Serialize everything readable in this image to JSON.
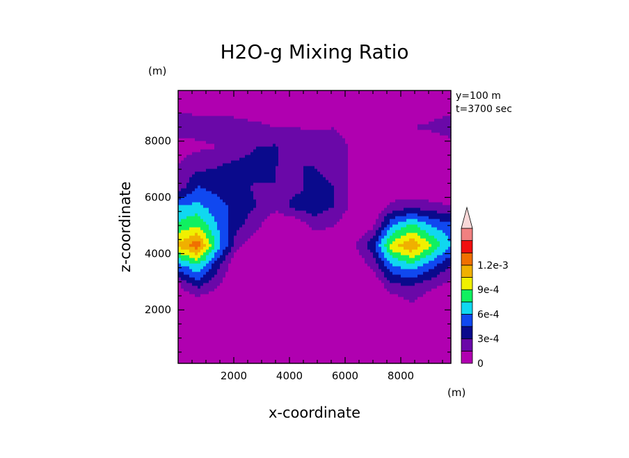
{
  "chart_data": {
    "type": "heatmap",
    "title": "H2O-g Mixing Ratio",
    "xlabel": "x-coordinate",
    "ylabel": "z-coordinate",
    "x_unit": "(m)",
    "y_unit": "(m)",
    "xlim": [
      0,
      9800
    ],
    "ylim": [
      100,
      9800
    ],
    "x_ticks": [
      2000,
      4000,
      6000,
      8000
    ],
    "x_tick_labels": [
      "2000",
      "4000",
      "6000",
      "8000"
    ],
    "y_ticks": [
      2000,
      4000,
      6000,
      8000
    ],
    "y_tick_labels": [
      "2000",
      "4000",
      "6000",
      "8000"
    ],
    "annotations": [
      "y=100 m",
      "t=3700 sec"
    ],
    "colorbar": {
      "levels": [
        0,
        0.00015,
        0.0003,
        0.00045,
        0.0006,
        0.00075,
        0.0009,
        0.00105,
        0.0012,
        0.00135
      ],
      "colors": [
        "#ffffff",
        "#b000b0",
        "#6a08a8",
        "#0a0a8c",
        "#1048f0",
        "#10d8f0",
        "#10f060",
        "#f0f000",
        "#f0b000",
        "#f07000",
        "#f01010",
        "#f08080",
        "#f8d8d8"
      ],
      "tick_labels": [
        "0",
        "3e-4",
        "6e-4",
        "9e-4",
        "1.2e-3"
      ],
      "extend_max": true
    },
    "grid": {
      "x": [
        0,
        700,
        1400,
        2100,
        2800,
        3500,
        4200,
        4900,
        5600,
        6300,
        7000,
        7700,
        8400,
        9100,
        9800
      ],
      "z": [
        100,
        800,
        1500,
        2200,
        2900,
        3600,
        4300,
        5000,
        5700,
        6400,
        7100,
        7800,
        8500,
        9200,
        9800
      ],
      "values": [
        [
          0,
          0,
          0,
          0,
          0,
          0,
          0,
          0,
          0,
          0,
          0,
          0,
          0,
          0,
          0
        ],
        [
          0,
          0,
          0,
          0,
          0,
          0,
          0,
          0,
          0,
          0,
          0,
          0,
          0,
          0,
          0
        ],
        [
          0,
          0,
          0,
          0,
          0,
          0,
          0,
          0,
          0,
          0,
          0,
          0,
          0,
          0,
          0
        ],
        [
          0,
          0,
          0,
          0,
          0,
          0,
          0,
          0,
          0,
          0,
          0,
          0,
          0.00013,
          0,
          0
        ],
        [
          0.00012,
          0.00035,
          0.00018,
          0,
          0,
          0,
          0,
          0,
          0,
          0,
          0,
          0.00028,
          0.0003,
          0.0002,
          0.0001
        ],
        [
          0.00055,
          0.00075,
          0.00035,
          0,
          0,
          0,
          0,
          0,
          0,
          0,
          0.0002,
          0.0006,
          0.0007,
          0.0005,
          0.0003
        ],
        [
          0.0011,
          0.0013,
          0.0007,
          0.0002,
          0,
          0,
          0,
          0,
          0,
          0.00012,
          0.0004,
          0.001,
          0.0012,
          0.0009,
          0.0006
        ],
        [
          0.0008,
          0.0009,
          0.0006,
          0.00035,
          0.0002,
          0,
          0,
          0.0002,
          0.00015,
          0,
          0.00012,
          0.0006,
          0.0008,
          0.0006,
          0.0005
        ],
        [
          0.0006,
          0.00065,
          0.0005,
          0.0004,
          0.0003,
          0.0002,
          0.00035,
          0.0004,
          0.0003,
          0.0001,
          0,
          0.0002,
          0.00025,
          0.0002,
          0.00015
        ],
        [
          0.0002,
          0.00045,
          0.0004,
          0.00035,
          0.00028,
          0.0003,
          0.00025,
          0.00035,
          0.0003,
          0.0001,
          0,
          0,
          0,
          0,
          0
        ],
        [
          0.00015,
          0.00025,
          0.0003,
          0.00035,
          0.00038,
          0.0003,
          0.0003,
          0.0003,
          0.00025,
          0.0001,
          0.0001,
          0.00012,
          0,
          0,
          0
        ],
        [
          0.0001,
          0.00012,
          0.00015,
          0.0002,
          0.0003,
          0.00032,
          0.00022,
          0.0002,
          0.00018,
          0.00014,
          0.00015,
          0.00012,
          0.0001,
          0.0001,
          0.0001
        ],
        [
          0.00022,
          0.0002,
          0.0002,
          0.00018,
          0.00017,
          0.00015,
          0.00015,
          0.00014,
          0.00015,
          0.00012,
          0.00012,
          0.00014,
          0.00015,
          0.00016,
          0.0002
        ],
        [
          0.00012,
          0.00012,
          0.00012,
          0.00012,
          0.0001,
          0.0001,
          0.0001,
          0.0001,
          0.0001,
          0.0001,
          0.0001,
          0.0001,
          0.00012,
          0.00012,
          0.00012
        ],
        [
          0,
          0,
          0,
          0,
          0,
          0,
          0,
          0,
          0,
          0,
          0,
          0,
          0,
          0,
          0
        ]
      ]
    }
  }
}
